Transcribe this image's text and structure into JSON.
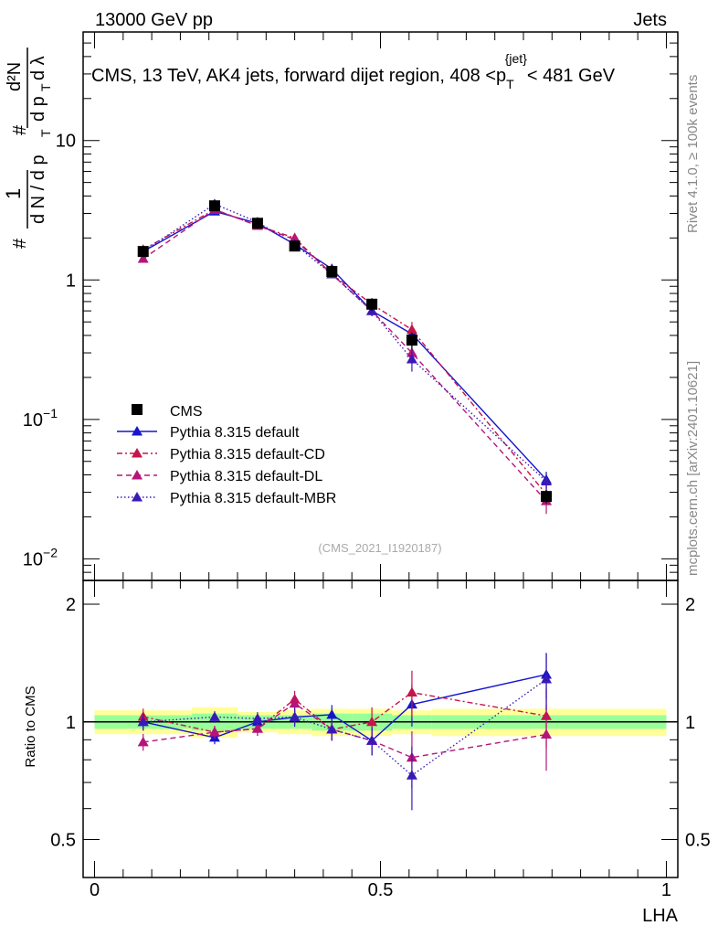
{
  "header": {
    "left": "13000 GeV pp",
    "right": "Jets"
  },
  "title": {
    "main": "CMS, 13 TeV, AK4 jets, forward dijet region, 408 <p",
    "sub": "T",
    "sup": "{jet}",
    "tail": "< 481 GeV"
  },
  "ylabel": {
    "hash1": "#",
    "one": "1",
    "dN": "d N / d p",
    "dN_sub": "T",
    "hash2": "#",
    "dp": "d p",
    "dp_sub": "T",
    "d2N": "d²N",
    "dlam": "d λ"
  },
  "side_labels": {
    "rivet": "Rivet 4.1.0, ≥ 100k events",
    "mcplots": "mcplots.cern.ch [arXiv:2401.10621]"
  },
  "watermark": "(CMS_2021_I1920187)",
  "main_ticks": [
    {
      "value": 0.01,
      "label": "10",
      "exp": "−2"
    },
    {
      "value": 0.1,
      "label": "10",
      "exp": "−1"
    },
    {
      "value": 1,
      "label": "1",
      "exp": ""
    },
    {
      "value": 10,
      "label": "10",
      "exp": ""
    }
  ],
  "ratio_ticks": [
    {
      "value": 0.5,
      "label": "0.5"
    },
    {
      "value": 1,
      "label": "1"
    },
    {
      "value": 2,
      "label": "2"
    }
  ],
  "x_ticks": [
    {
      "value": 0,
      "label": "0"
    },
    {
      "value": 0.5,
      "label": "0.5"
    },
    {
      "value": 1,
      "label": "1"
    }
  ],
  "xlabel": "LHA",
  "ratio_ylabel": "Ratio to CMS",
  "chart_data": {
    "type": "line",
    "title": "CMS, 13 TeV, AK4 jets, forward dijet region, 408 < p_T^{jet} < 481 GeV",
    "xlabel": "LHA",
    "ylabel": "1/(dN/dp_T) d²N/(dp_T dλ)",
    "ylog": true,
    "ylim": [
      0.007,
      60
    ],
    "xlim": [
      -0.02,
      1.02
    ],
    "ratio_ylim": [
      0.4,
      2.3
    ],
    "ratio_ylog": true,
    "x": [
      0.085,
      0.21,
      0.285,
      0.35,
      0.415,
      0.485,
      0.555,
      0.79
    ],
    "bin_edges": [
      0,
      0.17,
      0.25,
      0.32,
      0.38,
      0.45,
      0.52,
      0.59,
      1.0
    ],
    "data": {
      "name": "CMS",
      "values": [
        1.6,
        3.4,
        2.55,
        1.75,
        1.15,
        0.67,
        0.37,
        0.028
      ],
      "errors": [
        0.12,
        0.18,
        0.12,
        0.1,
        0.09,
        0.07,
        0.05,
        0.003
      ]
    },
    "band_outer": [
      0.07,
      0.09,
      0.06,
      0.07,
      0.08,
      0.08,
      0.07,
      0.08
    ],
    "band_inner": [
      0.04,
      0.05,
      0.04,
      0.04,
      0.05,
      0.05,
      0.04,
      0.04
    ],
    "series": [
      {
        "name": "Pythia 8.315 default",
        "color": "#1515cc",
        "dash": "",
        "values": [
          1.6,
          3.1,
          2.55,
          1.8,
          1.2,
          0.6,
          0.41,
          0.037
        ],
        "errors": [
          0.08,
          0.12,
          0.1,
          0.08,
          0.07,
          0.05,
          0.05,
          0.005
        ]
      },
      {
        "name": "Pythia 8.315 default-CD",
        "color": "#c4154c",
        "dash": "6,3,2,3",
        "values": [
          1.65,
          3.2,
          2.45,
          2.0,
          1.1,
          0.67,
          0.44,
          0.029
        ],
        "errors": [
          0.08,
          0.12,
          0.1,
          0.1,
          0.07,
          0.06,
          0.06,
          0.005
        ]
      },
      {
        "name": "Pythia 8.315 default-DL",
        "color": "#b5157a",
        "dash": "6,4",
        "values": [
          1.42,
          3.2,
          2.45,
          1.95,
          1.1,
          0.6,
          0.3,
          0.026
        ],
        "errors": [
          0.07,
          0.12,
          0.1,
          0.1,
          0.07,
          0.05,
          0.05,
          0.005
        ]
      },
      {
        "name": "Pythia 8.315 default-MBR",
        "color": "#3a1ab5",
        "dash": "1.5,2.5",
        "values": [
          1.6,
          3.5,
          2.6,
          1.8,
          1.1,
          0.6,
          0.27,
          0.036
        ],
        "errors": [
          0.08,
          0.12,
          0.1,
          0.1,
          0.07,
          0.05,
          0.05,
          0.006
        ]
      }
    ]
  }
}
